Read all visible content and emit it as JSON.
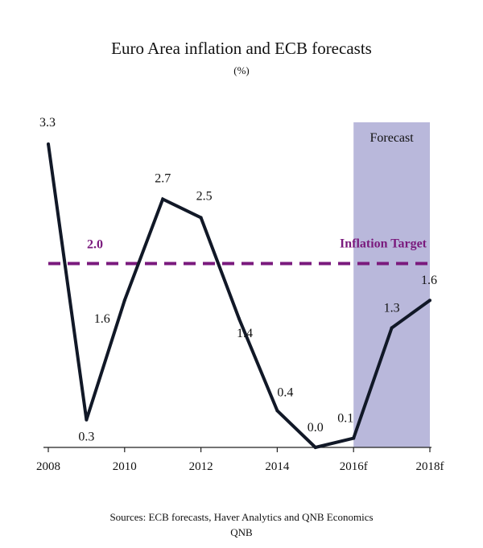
{
  "chart_data": {
    "type": "line",
    "title": "Euro Area inflation and ECB forecasts",
    "subtitle": "(%)",
    "x": [
      "2008",
      "2009",
      "2010",
      "2011",
      "2012",
      "2013",
      "2014",
      "2015",
      "2016f",
      "2017f",
      "2018f"
    ],
    "x_tick_labels": [
      "2008",
      "2010",
      "2012",
      "2014",
      "2016f",
      "2018f"
    ],
    "series": [
      {
        "name": "Euro Area inflation",
        "values": [
          3.3,
          0.3,
          1.6,
          2.7,
          2.5,
          1.4,
          0.4,
          0.0,
          0.1,
          1.3,
          1.6
        ],
        "data_labels": [
          "3.3",
          "0.3",
          "1.6",
          "2.7",
          "2.5",
          "1.4",
          "0.4",
          "0.0",
          "0.1",
          "1.3",
          "1.6"
        ],
        "color": "#111827"
      }
    ],
    "reference_line": {
      "label": "Inflation Target",
      "value": 2.0,
      "value_label": "2.0",
      "color": "#7a1a7d"
    },
    "forecast_region": {
      "label": "Forecast",
      "x_start": "2016f",
      "x_end": "2018f",
      "color": "#b9b8db"
    },
    "ylim": [
      0,
      3.3
    ],
    "xlabel": "",
    "ylabel": "",
    "grid": false
  },
  "source": {
    "line1": "Sources: ECB forecasts, Haver Analytics and QNB Economics",
    "line2": "QNB"
  }
}
